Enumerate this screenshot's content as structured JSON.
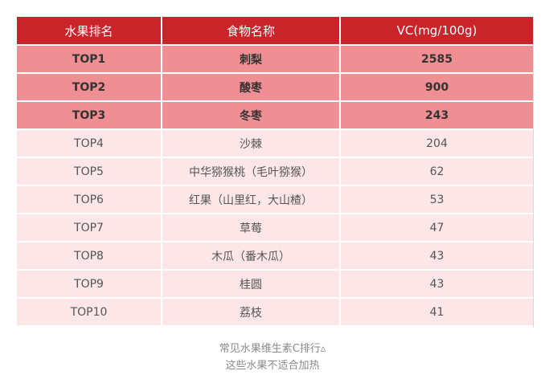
{
  "table": {
    "headers": [
      "水果排名",
      "食物名称",
      "VC(mg/100g)"
    ],
    "rows": [
      {
        "rank": "TOP1",
        "food": "刺梨",
        "vc": "2585",
        "highlight": true
      },
      {
        "rank": "TOP2",
        "food": "酸枣",
        "vc": "900",
        "highlight": true
      },
      {
        "rank": "TOP3",
        "food": "冬枣",
        "vc": "243",
        "highlight": true
      },
      {
        "rank": "TOP4",
        "food": "沙棘",
        "vc": "204",
        "highlight": false
      },
      {
        "rank": "TOP5",
        "food": "中华猕猴桃（毛叶猕猴）",
        "vc": "62",
        "highlight": false
      },
      {
        "rank": "TOP6",
        "food": "红果（山里红，大山楂）",
        "vc": "53",
        "highlight": false
      },
      {
        "rank": "TOP7",
        "food": "草莓",
        "vc": "47",
        "highlight": false
      },
      {
        "rank": "TOP8",
        "food": "木瓜（番木瓜）",
        "vc": "43",
        "highlight": false
      },
      {
        "rank": "TOP9",
        "food": "桂圆",
        "vc": "43",
        "highlight": false
      },
      {
        "rank": "TOP10",
        "food": "荔枝",
        "vc": "41",
        "highlight": false
      }
    ]
  },
  "captions": {
    "line1": "常见水果维生素C排行▵",
    "line2": "这些水果不适合加热"
  },
  "colors": {
    "header_bg": "#c8242a",
    "top_row_bg": "#f08f93",
    "plain_row_bg": "#fde6e7",
    "caption_text": "#8a8a8a"
  }
}
